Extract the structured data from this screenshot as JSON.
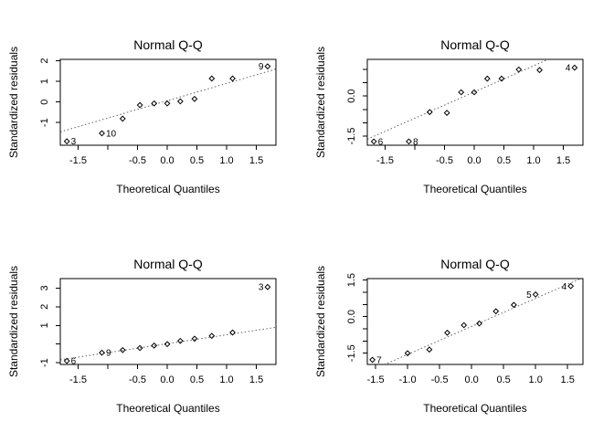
{
  "figure": {
    "background": "#ffffff",
    "foreground": "#000000",
    "ref_line_color": "#606060",
    "layout": "2x2 grid of R Normal Q-Q diagnostic plots"
  },
  "chart_data": {
    "type": "scatter",
    "panels": [
      {
        "title": "Normal Q-Q",
        "xlabel": "Theoretical Quantiles",
        "ylabel": "Standardized residuals",
        "xlim": [
          -1.8,
          1.83
        ],
        "ylim": [
          -2.1,
          2.07
        ],
        "grid": false,
        "xticks": [
          {
            "v": -1.5,
            "label": "-1.5"
          },
          {
            "v": -1.0,
            "label": ""
          },
          {
            "v": -0.5,
            "label": "-0.5"
          },
          {
            "v": 0.0,
            "label": "0.0"
          },
          {
            "v": 0.5,
            "label": "0.5"
          },
          {
            "v": 1.0,
            "label": "1.0"
          },
          {
            "v": 1.5,
            "label": "1.5"
          }
        ],
        "yticks": [
          {
            "v": -1,
            "label": "-1"
          },
          {
            "v": 0,
            "label": "0"
          },
          {
            "v": 1,
            "label": "1"
          },
          {
            "v": 2,
            "label": "2"
          }
        ],
        "ref_line": {
          "intercept": 0.06,
          "slope": 0.84,
          "style": "dotted"
        },
        "points": [
          {
            "x": -1.69,
            "y": -1.91,
            "label": "3",
            "side": "right"
          },
          {
            "x": -1.1,
            "y": -1.52,
            "label": "10",
            "side": "right"
          },
          {
            "x": -0.75,
            "y": -0.81
          },
          {
            "x": -0.46,
            "y": -0.15
          },
          {
            "x": -0.22,
            "y": -0.07
          },
          {
            "x": 0.0,
            "y": -0.07
          },
          {
            "x": 0.22,
            "y": 0.03
          },
          {
            "x": 0.46,
            "y": 0.15
          },
          {
            "x": 0.75,
            "y": 1.14
          },
          {
            "x": 1.1,
            "y": 1.14
          },
          {
            "x": 1.69,
            "y": 1.73,
            "label": "9",
            "side": "left"
          }
        ]
      },
      {
        "title": "Normal Q-Q",
        "xlabel": "Theoretical Quantiles",
        "ylabel": "Standardized residuals",
        "xlim": [
          -1.8,
          1.83
        ],
        "ylim": [
          -1.84,
          1.37
        ],
        "grid": false,
        "xticks": [
          {
            "v": -1.5,
            "label": "-1.5"
          },
          {
            "v": -1.0,
            "label": ""
          },
          {
            "v": -0.5,
            "label": "-0.5"
          },
          {
            "v": 0.0,
            "label": "0.0"
          },
          {
            "v": 0.5,
            "label": "0.5"
          },
          {
            "v": 1.0,
            "label": "1.0"
          },
          {
            "v": 1.5,
            "label": "1.5"
          }
        ],
        "yticks": [
          {
            "v": -1.5,
            "label": "-1.5"
          },
          {
            "v": -1.0,
            "label": ""
          },
          {
            "v": -0.5,
            "label": ""
          },
          {
            "v": 0.0,
            "label": "0.0"
          },
          {
            "v": 0.5,
            "label": ""
          },
          {
            "v": 1.0,
            "label": ""
          }
        ],
        "ref_line": {
          "intercept": 0.15,
          "slope": 0.98,
          "style": "dotted"
        },
        "points": [
          {
            "x": -1.69,
            "y": -1.7,
            "label": "6",
            "side": "right"
          },
          {
            "x": -1.1,
            "y": -1.7,
            "label": "8",
            "side": "right"
          },
          {
            "x": -0.75,
            "y": -0.6
          },
          {
            "x": -0.46,
            "y": -0.63
          },
          {
            "x": -0.22,
            "y": 0.14
          },
          {
            "x": 0.0,
            "y": 0.14
          },
          {
            "x": 0.22,
            "y": 0.65
          },
          {
            "x": 0.46,
            "y": 0.65
          },
          {
            "x": 0.75,
            "y": 0.99
          },
          {
            "x": 1.1,
            "y": 0.97
          },
          {
            "x": 1.69,
            "y": 1.06,
            "label": "4",
            "side": "left"
          }
        ]
      },
      {
        "title": "Normal Q-Q",
        "xlabel": "Theoretical Quantiles",
        "ylabel": "Standardized residuals",
        "xlim": [
          -1.8,
          1.83
        ],
        "ylim": [
          -1.09,
          3.51
        ],
        "grid": false,
        "xticks": [
          {
            "v": -1.5,
            "label": "-1.5"
          },
          {
            "v": -1.0,
            "label": ""
          },
          {
            "v": -0.5,
            "label": "-0.5"
          },
          {
            "v": 0.0,
            "label": "0.0"
          },
          {
            "v": 0.5,
            "label": "0.5"
          },
          {
            "v": 1.0,
            "label": "1.0"
          },
          {
            "v": 1.5,
            "label": "1.5"
          }
        ],
        "yticks": [
          {
            "v": -1,
            "label": "-1"
          },
          {
            "v": 0,
            "label": ""
          },
          {
            "v": 1,
            "label": "1"
          },
          {
            "v": 2,
            "label": "2"
          },
          {
            "v": 3,
            "label": "3"
          }
        ],
        "ref_line": {
          "intercept": 0.02,
          "slope": 0.48,
          "style": "dotted"
        },
        "points": [
          {
            "x": -1.69,
            "y": -0.9,
            "label": "6",
            "side": "right"
          },
          {
            "x": -1.1,
            "y": -0.46,
            "label": "9",
            "side": "right"
          },
          {
            "x": -0.75,
            "y": -0.32
          },
          {
            "x": -0.46,
            "y": -0.21
          },
          {
            "x": -0.22,
            "y": -0.08
          },
          {
            "x": 0.0,
            "y": 0.0
          },
          {
            "x": 0.22,
            "y": 0.17
          },
          {
            "x": 0.46,
            "y": 0.29
          },
          {
            "x": 0.75,
            "y": 0.44
          },
          {
            "x": 1.1,
            "y": 0.62
          },
          {
            "x": 1.69,
            "y": 3.06,
            "label": "3",
            "side": "left"
          }
        ]
      },
      {
        "title": "Normal Q-Q",
        "xlabel": "Theoretical Quantiles",
        "ylabel": "Standardized residuals",
        "xlim": [
          -1.63,
          1.74
        ],
        "ylim": [
          -1.96,
          1.56
        ],
        "grid": false,
        "xticks": [
          {
            "v": -1.5,
            "label": "-1.5"
          },
          {
            "v": -1.0,
            "label": "-1.0"
          },
          {
            "v": -0.5,
            "label": "-0.5"
          },
          {
            "v": 0.0,
            "label": "0.0"
          },
          {
            "v": 0.5,
            "label": "0.5"
          },
          {
            "v": 1.0,
            "label": "1.0"
          },
          {
            "v": 1.5,
            "label": "1.5"
          }
        ],
        "yticks": [
          {
            "v": -1.5,
            "label": "-1.5"
          },
          {
            "v": -1.0,
            "label": ""
          },
          {
            "v": -0.5,
            "label": ""
          },
          {
            "v": 0.0,
            "label": "0.0"
          },
          {
            "v": 0.5,
            "label": ""
          },
          {
            "v": 1.0,
            "label": ""
          },
          {
            "v": 1.5,
            "label": "1.5"
          }
        ],
        "ref_line": {
          "intercept": -0.4,
          "slope": 1.15,
          "style": "dotted"
        },
        "points": [
          {
            "x": -1.55,
            "y": -1.77,
            "label": "7",
            "side": "right"
          },
          {
            "x": -1.0,
            "y": -1.5
          },
          {
            "x": -0.66,
            "y": -1.35
          },
          {
            "x": -0.38,
            "y": -0.66
          },
          {
            "x": -0.12,
            "y": -0.35
          },
          {
            "x": 0.12,
            "y": -0.28
          },
          {
            "x": 0.38,
            "y": 0.22
          },
          {
            "x": 0.66,
            "y": 0.48
          },
          {
            "x": 1.0,
            "y": 0.91,
            "label": "5",
            "side": "left"
          },
          {
            "x": 1.55,
            "y": 1.25,
            "label": "4",
            "side": "left"
          }
        ]
      }
    ]
  }
}
